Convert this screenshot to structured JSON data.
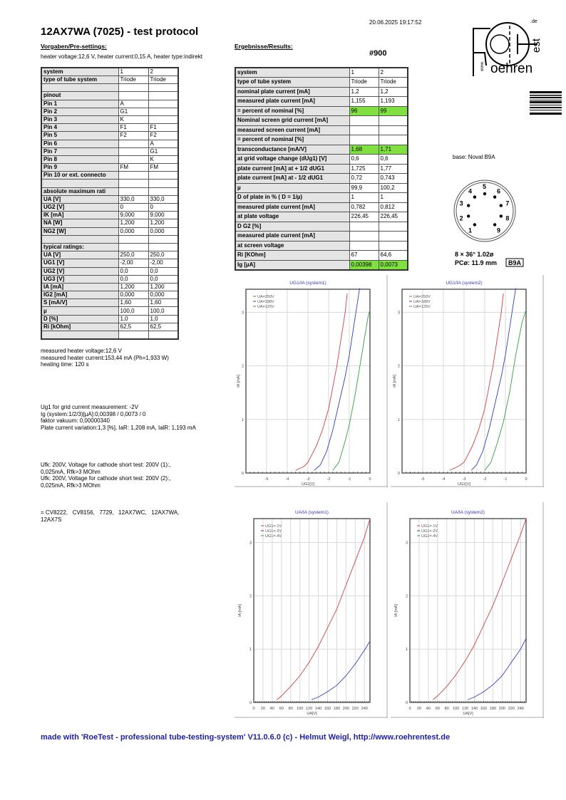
{
  "header": {
    "title": "12AX7WA (7025)  -  test protocol",
    "datetime": "20.06.2025  19:17:52",
    "presettings_heading": "Vorgaben/Pre-settings:",
    "results_heading": "Ergebnisse/Results:",
    "heater_line": "heater voltage:12,6 V, heater current:0,15 A, heater type:indirekt",
    "test_number": "#900"
  },
  "logo": {
    "text_main": "oehren",
    "text_www": "www.",
    "text_est": "est",
    "text_de": ".de"
  },
  "left_table": {
    "rows": [
      [
        "system",
        "1",
        "2"
      ],
      [
        "type of tube system",
        "Triode",
        "Triode"
      ],
      [
        "",
        "",
        ""
      ],
      [
        "pinout",
        "",
        ""
      ],
      [
        "Pin 1",
        "A",
        ""
      ],
      [
        "Pin 2",
        "G1",
        ""
      ],
      [
        "Pin 3",
        "K",
        ""
      ],
      [
        "Pin 4",
        "F1",
        "F1"
      ],
      [
        "Pin 5",
        "F2",
        "F2"
      ],
      [
        "Pin 6",
        "",
        "A"
      ],
      [
        "Pin 7",
        "",
        "G1"
      ],
      [
        "Pin 8",
        "",
        "K"
      ],
      [
        "Pin 9",
        "FM",
        "FM"
      ],
      [
        "Pin 10 or ext. connecto",
        "",
        ""
      ],
      [
        "",
        "",
        ""
      ],
      [
        "absolute maximum rati",
        "",
        ""
      ],
      [
        "UA [V]",
        "330,0",
        "330,0"
      ],
      [
        "UG2 [V]",
        "0",
        "0"
      ],
      [
        "IK [mA]",
        "9,000",
        "9,000"
      ],
      [
        "NA [W]",
        "1,200",
        "1,200"
      ],
      [
        "NG2 [W]",
        "0,000",
        "0,000"
      ],
      [
        "",
        "",
        ""
      ],
      [
        "typical ratings:",
        "",
        ""
      ],
      [
        "UA [V]",
        "250,0",
        "250,0"
      ],
      [
        "UG1 [V]",
        "-2,00",
        "-2,00"
      ],
      [
        "UG2 [V]",
        "0,0",
        "0,0"
      ],
      [
        "UG3 [V]",
        "0,0",
        "0,0"
      ],
      [
        "IA [mA]",
        "1,200",
        "1,200"
      ],
      [
        "IG2 [mA]",
        "0,000",
        "0,000"
      ],
      [
        "S [mA/V]",
        "1,60",
        "1,60"
      ],
      [
        "µ",
        "100,0",
        "100,0"
      ],
      [
        "D [%]",
        "1,0",
        "1,0"
      ],
      [
        "Ri [kOhm]",
        "62,5",
        "62,5"
      ],
      [
        "",
        "",
        ""
      ]
    ]
  },
  "results_table": {
    "highlight_color": "#7fe040",
    "rows": [
      {
        "label": "system",
        "v1": "1",
        "v2": "2",
        "highlight": false
      },
      {
        "label": "type of tube system",
        "v1": "Triode",
        "v2": "Triode",
        "highlight": false
      },
      {
        "label": "nominal plate current [mA]",
        "v1": "1,2",
        "v2": "1,2",
        "highlight": false
      },
      {
        "label": "measured plate current [mA]",
        "v1": "1,155",
        "v2": "1,193",
        "highlight": false
      },
      {
        "label": "= percent of nominal [%]",
        "v1": "96",
        "v2": "99",
        "highlight": true
      },
      {
        "label": "Nominal screen grid current [mA]",
        "v1": "",
        "v2": "",
        "highlight": false
      },
      {
        "label": "measured screen current [mA]",
        "v1": "",
        "v2": "",
        "highlight": false
      },
      {
        "label": "= percent of nominal [%]",
        "v1": "",
        "v2": "",
        "highlight": false
      },
      {
        "label": "transconductance [mA/V]",
        "v1": "1,68",
        "v2": "1,71",
        "highlight": true
      },
      {
        "label": "at grid voltage change (dUg1) [V]",
        "v1": "0,6",
        "v2": "0,6",
        "highlight": false
      },
      {
        "label": "plate current [mA] at + 1/2 dUG1",
        "v1": "1,725",
        "v2": "1,77",
        "highlight": false
      },
      {
        "label": "plate current [mA] at - 1/2 dUG1",
        "v1": "0,72",
        "v2": "0,743",
        "highlight": false
      },
      {
        "label": "µ",
        "v1": "99,9",
        "v2": "100,2",
        "highlight": false
      },
      {
        "label": "D of plate in % ( D = 1/µ)",
        "v1": "1",
        "v2": "1",
        "highlight": false
      },
      {
        "label": "measured plate current [mA]",
        "v1": "0,782",
        "v2": "0,812",
        "highlight": false
      },
      {
        "label": "at plate voltage",
        "v1": "226,45",
        "v2": "226,45",
        "highlight": false
      },
      {
        "label": "D G2 [%]",
        "v1": "",
        "v2": "",
        "highlight": false
      },
      {
        "label": "measured plate current [mA]",
        "v1": "",
        "v2": "",
        "highlight": false
      },
      {
        "label": "at screen voltage",
        "v1": "",
        "v2": "",
        "highlight": false
      },
      {
        "label": "Ri [KOhm]",
        "v1": "67",
        "v2": "64,6",
        "highlight": false
      },
      {
        "label": "Ig [µA]",
        "v1": "0,00398",
        "v2": "0,0073",
        "highlight": true
      }
    ]
  },
  "base": {
    "label": "base: Noval B9A",
    "pins": [
      "1",
      "2",
      "3",
      "4",
      "5",
      "6",
      "7",
      "8",
      "9"
    ],
    "spec_line1": "8 × 36°  1.02ø",
    "spec_line2": "PCø: 11.9 mm",
    "badge": "B9A"
  },
  "notes": {
    "heater": "measured heater voltage:12,6 V\nmeasured heater current:153,44 mA (Ph=1,933 W)\nheating time: 120 s",
    "grid": "Ug1 for grid current measurement: -2V\nIg (system:1/2/3)[µA]:0,00398 / 0,0073 / 0\nfaktor vakuum: 0,00000340\nPlate current variation:1,3 [%], IaR: 1,208 mA, IalR: 1,193 mA",
    "cathode": "Ufk: 200V, Voltage for cathode short test: 200V (1):,\n0,025mA, Rfk>3 MOhm\nUfk: 200V, Voltage for cathode short test: 200V (2):,\n0,025mA, Rfk>3 MOhm",
    "equivalents": "= CV8222,   CV8156,   7729,   12AX7WC,   12AX7WA,\n12AX7S"
  },
  "footer": "made with 'RoeTest - professional tube-testing-system' V11.0.6.0 (c) - Helmut Weigl, http://www.roehrentest.de",
  "chart_data": [
    {
      "type": "line",
      "title": "UG1/IA (system1)",
      "xlabel": "UG1[V]",
      "ylabel": "IA [mA]",
      "xlim": [
        -6,
        0
      ],
      "ylim": [
        0,
        3.43
      ],
      "xticks": [
        "-5",
        "-4",
        "-3",
        "-2",
        "-1",
        "0"
      ],
      "xtick_values": [
        -5,
        -4,
        -3,
        -2,
        -1,
        0
      ],
      "yticks": [
        "0",
        "1",
        "2",
        "3"
      ],
      "grid": true,
      "legend": "top-left",
      "series": [
        {
          "name": "UA=250V",
          "color": "#d04040",
          "x": [
            -3.6,
            -3.2,
            -3.0,
            -2.6,
            -2.3,
            -2.0,
            -1.8,
            -1.6,
            -1.4,
            -1.2,
            -1.1
          ],
          "y": [
            0.05,
            0.12,
            0.2,
            0.5,
            0.8,
            1.2,
            1.6,
            2.0,
            2.5,
            3.0,
            3.35
          ]
        },
        {
          "name": "UA=188V",
          "color": "#3040c0",
          "x": [
            -2.7,
            -2.4,
            -2.1,
            -1.8,
            -1.5,
            -1.2,
            -1.0,
            -0.8,
            -0.5
          ],
          "y": [
            0.05,
            0.15,
            0.4,
            0.8,
            1.3,
            1.8,
            2.2,
            2.7,
            3.45
          ]
        },
        {
          "name": "UA=125V",
          "color": "#30a040",
          "x": [
            -1.8,
            -1.5,
            -1.2,
            -1.0,
            -0.7,
            -0.4,
            -0.1,
            0
          ],
          "y": [
            0.05,
            0.2,
            0.6,
            0.9,
            1.5,
            2.2,
            2.9,
            3.05
          ]
        }
      ]
    },
    {
      "type": "line",
      "title": "UG1/IA (system2)",
      "xlabel": "UG1[V]",
      "ylabel": "IA [mA]",
      "xlim": [
        -6,
        0
      ],
      "ylim": [
        0,
        3.43
      ],
      "xticks": [
        "-5",
        "-4",
        "-3",
        "-2",
        "-1",
        "0"
      ],
      "xtick_values": [
        -5,
        -4,
        -3,
        -2,
        -1,
        0
      ],
      "yticks": [
        "0",
        "1",
        "2",
        "3"
      ],
      "grid": true,
      "legend": "top-left",
      "series": [
        {
          "name": "UA=250V",
          "color": "#d04040",
          "x": [
            -3.7,
            -3.3,
            -3.0,
            -2.6,
            -2.3,
            -2.0,
            -1.8,
            -1.6,
            -1.4,
            -1.2,
            -1.1
          ],
          "y": [
            0.05,
            0.12,
            0.2,
            0.5,
            0.8,
            1.2,
            1.6,
            2.0,
            2.5,
            3.0,
            3.35
          ]
        },
        {
          "name": "UA=188V",
          "color": "#3040c0",
          "x": [
            -2.65,
            -2.4,
            -2.1,
            -1.8,
            -1.5,
            -1.2,
            -1.0,
            -0.8,
            -0.5
          ],
          "y": [
            0.05,
            0.15,
            0.4,
            0.8,
            1.3,
            1.8,
            2.2,
            2.7,
            3.45
          ]
        },
        {
          "name": "UA=125V",
          "color": "#30a040",
          "x": [
            -2.0,
            -1.7,
            -1.4,
            -1.1,
            -0.8,
            -0.5,
            -0.2,
            0
          ],
          "y": [
            0.05,
            0.2,
            0.55,
            0.95,
            1.5,
            2.2,
            2.8,
            3.05
          ]
        }
      ]
    },
    {
      "type": "line",
      "title": "UA/IA (system1)",
      "xlabel": "UA[V]",
      "ylabel": "IA [mA]",
      "xlim": [
        0,
        252
      ],
      "ylim": [
        0,
        3.45
      ],
      "xticks": [
        "0",
        "20",
        "40",
        "60",
        "80",
        "100",
        "120",
        "140",
        "160",
        "180",
        "200",
        "220",
        "240"
      ],
      "xtick_values": [
        0,
        20,
        40,
        60,
        80,
        100,
        120,
        140,
        160,
        180,
        200,
        220,
        240
      ],
      "yticks": [
        "0",
        "1",
        "2",
        "3"
      ],
      "grid": true,
      "legend": "top-left",
      "series": [
        {
          "name": "UG1=-1V",
          "color": "#d04040",
          "x": [
            50,
            60,
            80,
            100,
            120,
            140,
            160,
            180,
            200,
            220,
            240,
            252
          ],
          "y": [
            0.05,
            0.12,
            0.3,
            0.5,
            0.75,
            1.05,
            1.4,
            1.75,
            2.2,
            2.65,
            3.1,
            3.45
          ]
        },
        {
          "name": "UG1=-2V",
          "color": "#3040c0",
          "x": [
            125,
            140,
            160,
            180,
            200,
            220,
            240,
            252
          ],
          "y": [
            0.05,
            0.1,
            0.2,
            0.32,
            0.5,
            0.72,
            0.98,
            1.15
          ]
        },
        {
          "name": "UG1=-4V",
          "color": "#30a040",
          "x": [],
          "y": []
        }
      ]
    },
    {
      "type": "line",
      "title": "UA/IA (system2)",
      "xlabel": "UA[V]",
      "ylabel": "IA [mA]",
      "xlim": [
        0,
        252
      ],
      "ylim": [
        0,
        3.45
      ],
      "xticks": [
        "0",
        "20",
        "40",
        "60",
        "80",
        "100",
        "120",
        "140",
        "160",
        "180",
        "200",
        "220",
        "240"
      ],
      "xtick_values": [
        0,
        20,
        40,
        60,
        80,
        100,
        120,
        140,
        160,
        180,
        200,
        220,
        240
      ],
      "yticks": [
        "0",
        "1",
        "2",
        "3"
      ],
      "grid": true,
      "legend": "top-left",
      "series": [
        {
          "name": "UG1=-1V",
          "color": "#d04040",
          "x": [
            50,
            60,
            80,
            100,
            120,
            140,
            160,
            180,
            200,
            220,
            240,
            252
          ],
          "y": [
            0.05,
            0.12,
            0.3,
            0.52,
            0.78,
            1.08,
            1.45,
            1.82,
            2.25,
            2.7,
            3.15,
            3.45
          ]
        },
        {
          "name": "UG1=-2V",
          "color": "#3040c0",
          "x": [
            125,
            140,
            160,
            180,
            200,
            220,
            240,
            252
          ],
          "y": [
            0.05,
            0.1,
            0.2,
            0.33,
            0.5,
            0.75,
            1.0,
            1.2
          ]
        },
        {
          "name": "UG1=-4V",
          "color": "#30a040",
          "x": [],
          "y": []
        }
      ]
    }
  ]
}
